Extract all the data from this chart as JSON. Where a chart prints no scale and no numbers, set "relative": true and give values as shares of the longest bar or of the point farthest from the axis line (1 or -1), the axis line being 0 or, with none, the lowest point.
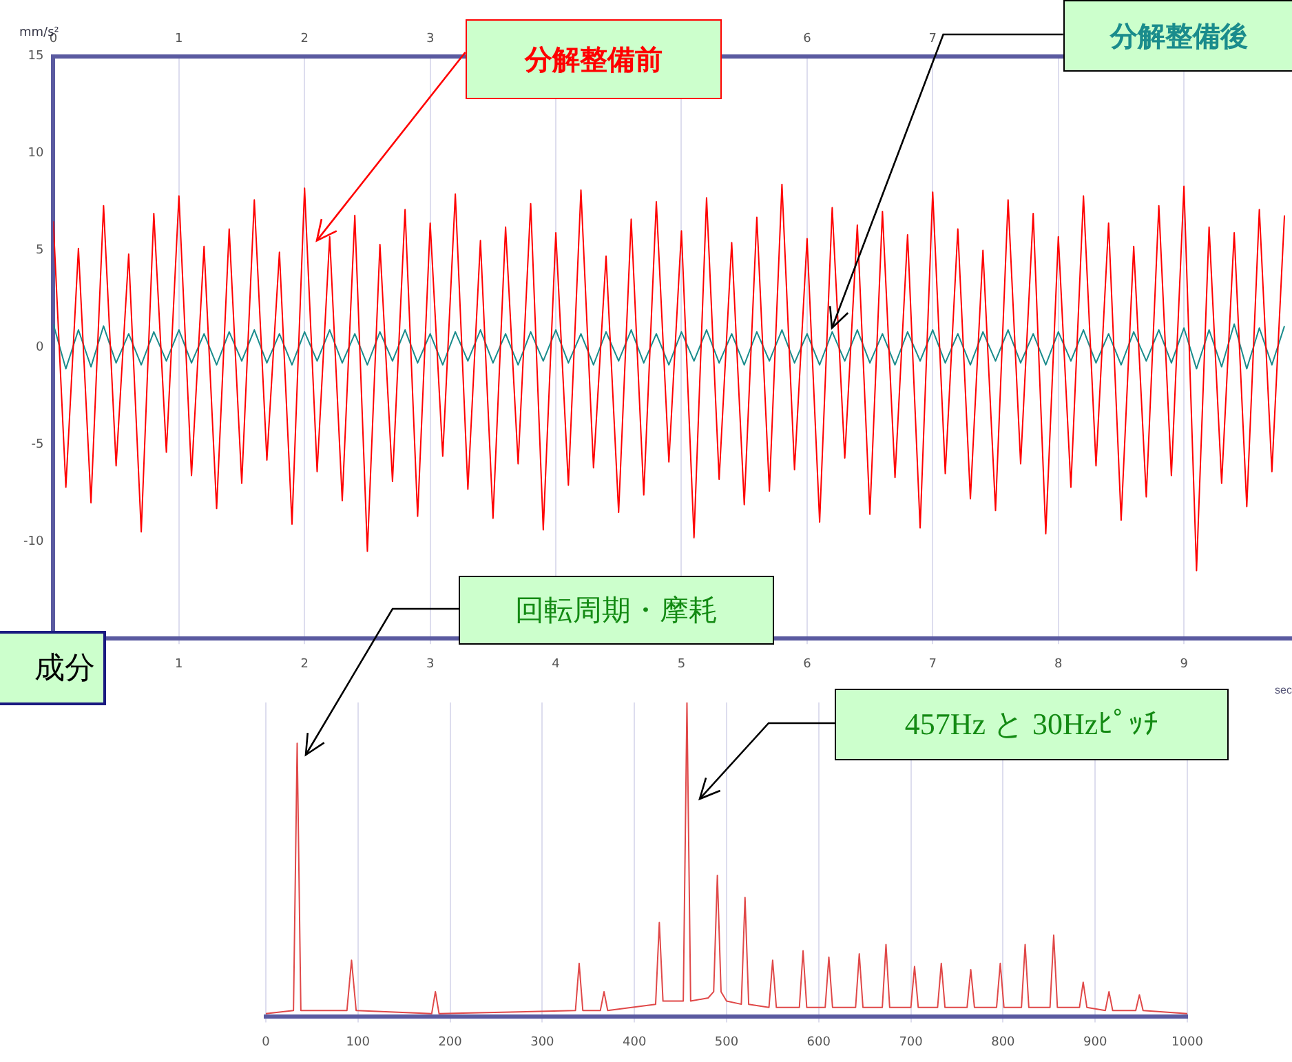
{
  "chart_data": [
    {
      "type": "line",
      "ylabel": "mm/s²",
      "xlabel": "sec",
      "x": [
        0,
        0.1,
        0.2,
        0.3,
        0.4,
        0.5,
        0.6,
        0.7,
        0.8,
        0.9,
        1,
        1.1,
        1.2,
        1.3,
        1.4,
        1.5,
        1.6,
        1.7,
        1.8,
        1.9,
        2,
        2.1,
        2.2,
        2.3,
        2.4,
        2.5,
        2.6,
        2.7,
        2.8,
        2.9,
        3,
        3.1,
        3.2,
        3.3,
        3.4,
        3.5,
        3.6,
        3.7,
        3.8,
        3.9,
        4,
        4.1,
        4.2,
        4.3,
        4.4,
        4.5,
        4.6,
        4.7,
        4.8,
        4.9,
        5,
        5.1,
        5.2,
        5.3,
        5.4,
        5.5,
        5.6,
        5.7,
        5.8,
        5.9,
        6,
        6.1,
        6.2,
        6.3,
        6.4,
        6.5,
        6.6,
        6.7,
        6.8,
        6.9,
        7,
        7.1,
        7.2,
        7.3,
        7.4,
        7.5,
        7.6,
        7.7,
        7.8,
        7.9,
        8,
        8.1,
        8.2,
        8.3,
        8.4,
        8.5,
        8.6,
        8.7,
        8.8,
        8.9,
        9,
        9.1,
        9.2,
        9.3,
        9.4,
        9.5,
        9.6,
        9.7,
        9.8
      ],
      "series": [
        {
          "name": "分解整備前",
          "color": "#ff0000",
          "values": [
            6.5,
            -7.2,
            5.1,
            -8.0,
            7.3,
            -6.1,
            4.8,
            -9.5,
            6.9,
            -5.4,
            7.8,
            -6.6,
            5.2,
            -8.3,
            6.1,
            -7.0,
            7.6,
            -5.8,
            4.9,
            -9.1,
            8.2,
            -6.4,
            5.7,
            -7.9,
            6.8,
            -10.5,
            5.3,
            -6.9,
            7.1,
            -8.7,
            6.4,
            -5.6,
            7.9,
            -7.3,
            5.5,
            -8.8,
            6.2,
            -6.0,
            7.4,
            -9.4,
            5.9,
            -7.1,
            8.1,
            -6.2,
            4.7,
            -8.5,
            6.6,
            -7.6,
            7.5,
            -5.9,
            6.0,
            -9.8,
            7.7,
            -6.8,
            5.4,
            -8.1,
            6.7,
            -7.4,
            8.4,
            -6.3,
            5.6,
            -9.0,
            7.2,
            -5.7,
            6.3,
            -8.6,
            7.0,
            -6.7,
            5.8,
            -9.3,
            8.0,
            -6.5,
            6.1,
            -7.8,
            5.0,
            -8.4,
            7.6,
            -6.0,
            6.9,
            -9.6,
            5.7,
            -7.2,
            7.8,
            -6.1,
            6.4,
            -8.9,
            5.2,
            -7.7,
            7.3,
            -6.6,
            8.3,
            -11.5,
            6.2,
            -7.0,
            5.9,
            -8.2,
            7.1,
            -6.4,
            6.8
          ]
        },
        {
          "name": "分解整備後",
          "color": "#1a8c8c",
          "values": [
            1.2,
            -1.1,
            0.9,
            -1.0,
            1.1,
            -0.8,
            0.7,
            -0.9,
            0.8,
            -0.7,
            0.9,
            -0.8,
            0.7,
            -0.9,
            0.8,
            -0.7,
            0.9,
            -0.8,
            0.7,
            -0.9,
            0.8,
            -0.7,
            0.9,
            -0.8,
            0.7,
            -0.9,
            0.8,
            -0.7,
            0.9,
            -0.8,
            0.7,
            -0.9,
            0.8,
            -0.7,
            0.9,
            -0.8,
            0.7,
            -0.9,
            0.8,
            -0.7,
            0.9,
            -0.8,
            0.7,
            -0.9,
            0.8,
            -0.7,
            0.9,
            -0.8,
            0.7,
            -0.9,
            0.8,
            -0.7,
            0.9,
            -0.8,
            0.7,
            -0.9,
            0.8,
            -0.7,
            0.9,
            -0.8,
            0.7,
            -0.9,
            0.8,
            -0.7,
            0.9,
            -0.8,
            0.7,
            -0.9,
            0.8,
            -0.7,
            0.9,
            -0.8,
            0.7,
            -0.9,
            0.8,
            -0.7,
            0.9,
            -0.8,
            0.7,
            -0.9,
            0.8,
            -0.7,
            0.9,
            -0.8,
            0.7,
            -0.9,
            0.8,
            -0.7,
            0.9,
            -0.8,
            1.0,
            -1.1,
            0.9,
            -1.0,
            1.2,
            -1.1,
            1.0,
            -0.9,
            1.1
          ]
        }
      ],
      "xlim": [
        0,
        9.86
      ],
      "xticks": [
        1,
        2,
        3,
        4,
        5,
        6,
        7,
        8,
        9
      ],
      "x2lim": [
        0,
        9.86
      ],
      "x2ticks": [
        0,
        1,
        2,
        3,
        6,
        7
      ],
      "ylim": [
        -15,
        15
      ],
      "yticks": [
        15,
        10,
        5,
        0,
        -5,
        -10
      ],
      "grid": "x",
      "legend": false,
      "marker": "none"
    },
    {
      "type": "line",
      "relative": true,
      "x": [
        0,
        30,
        34,
        38,
        88,
        93,
        98,
        180,
        184,
        188,
        336,
        340,
        344,
        363,
        367,
        371,
        423,
        427,
        431,
        453,
        457,
        461,
        480,
        486,
        490,
        494,
        500,
        516,
        520,
        524,
        546,
        550,
        554,
        579,
        583,
        587,
        607,
        611,
        615,
        640,
        644,
        648,
        669,
        673,
        677,
        700,
        704,
        708,
        729,
        733,
        737,
        761,
        765,
        769,
        793,
        797,
        801,
        820,
        824,
        828,
        851,
        855,
        859,
        883,
        887,
        891,
        911,
        915,
        919,
        944,
        948,
        952,
        1000
      ],
      "series": [
        {
          "color": "#e04848",
          "values": [
            0.01,
            0.02,
            0.87,
            0.02,
            0.02,
            0.18,
            0.02,
            0.01,
            0.08,
            0.01,
            0.02,
            0.17,
            0.02,
            0.02,
            0.08,
            0.02,
            0.04,
            0.3,
            0.05,
            0.05,
            1,
            0.05,
            0.06,
            0.08,
            0.45,
            0.08,
            0.05,
            0.04,
            0.38,
            0.04,
            0.03,
            0.18,
            0.03,
            0.03,
            0.21,
            0.03,
            0.03,
            0.19,
            0.03,
            0.03,
            0.2,
            0.03,
            0.03,
            0.23,
            0.03,
            0.03,
            0.16,
            0.03,
            0.03,
            0.17,
            0.03,
            0.03,
            0.15,
            0.03,
            0.03,
            0.17,
            0.03,
            0.03,
            0.23,
            0.03,
            0.03,
            0.26,
            0.03,
            0.03,
            0.11,
            0.03,
            0.02,
            0.08,
            0.02,
            0.02,
            0.07,
            0.02,
            0.01
          ]
        }
      ],
      "xlim": [
        0,
        1000
      ],
      "xticks": [
        0,
        100,
        200,
        300,
        400,
        500,
        600,
        700,
        800,
        900,
        1000
      ],
      "grid": "x",
      "legend": false,
      "marker": "none",
      "annotations": [
        "回転周期・摩耗",
        "457Hz と 30Hzﾋﾟｯﾁ",
        "成分"
      ]
    }
  ]
}
